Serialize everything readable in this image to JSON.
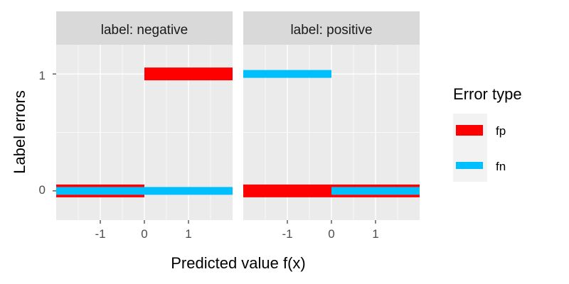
{
  "chart_data": {
    "type": "line",
    "facet_prefix": "label: ",
    "facets": [
      {
        "label": "negative",
        "series": [
          {
            "name": "fp",
            "segments": [
              {
                "x": [
                  -2,
                  0
                ],
                "y": 0
              },
              {
                "x": [
                  0,
                  2
                ],
                "y": 1
              }
            ]
          },
          {
            "name": "fn",
            "segments": [
              {
                "x": [
                  -2,
                  0
                ],
                "y": 0
              },
              {
                "x": [
                  0,
                  2
                ],
                "y": 0
              }
            ]
          }
        ]
      },
      {
        "label": "positive",
        "series": [
          {
            "name": "fp",
            "segments": [
              {
                "x": [
                  -2,
                  0
                ],
                "y": 0
              },
              {
                "x": [
                  0,
                  2
                ],
                "y": 0
              }
            ]
          },
          {
            "name": "fn",
            "segments": [
              {
                "x": [
                  -2,
                  0
                ],
                "y": 1
              },
              {
                "x": [
                  0,
                  2
                ],
                "y": 0
              }
            ]
          }
        ]
      }
    ],
    "xlabel": "Predicted value f(x)",
    "ylabel": "Label errors",
    "x_ticks": [
      -1,
      0,
      1
    ],
    "y_ticks": [
      0,
      1
    ],
    "xlim": [
      -2,
      2
    ],
    "ylim": [
      -0.25,
      1.25
    ],
    "grid": true,
    "legend": {
      "title": "Error type",
      "placement": "right",
      "entries": [
        {
          "name": "fp",
          "color": "#FF0000"
        },
        {
          "name": "fn",
          "color": "#00BFFF"
        }
      ]
    },
    "colors": {
      "fp": "#FF0000",
      "fn": "#00BFFF"
    }
  }
}
